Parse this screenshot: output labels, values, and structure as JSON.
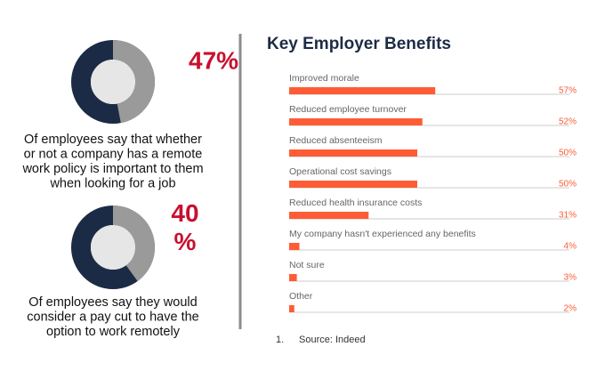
{
  "chart_data": [
    {
      "type": "donut",
      "values": [
        47
      ],
      "value_labels": [
        "47%"
      ],
      "color": "#9a9a9a",
      "rest_color": "#1c2b45",
      "caption": [
        "Of employees say that whether",
        "or not a company has a remote",
        "work policy is important to them",
        "when looking for a job"
      ]
    },
    {
      "type": "donut",
      "values": [
        40
      ],
      "value_labels": [
        "40 %"
      ],
      "color": "#9a9a9a",
      "rest_color": "#1c2b45",
      "caption": [
        "Of employees say they would",
        "consider a pay cut to have the",
        "option to work remotely"
      ]
    },
    {
      "type": "bar",
      "title": "Key Employer Benefits",
      "categories": [
        "Improved morale",
        "Reduced employee turnover",
        "Reduced absenteeism",
        "Operational cost savings",
        "Reduced health insurance costs",
        "My company hasn't experienced any benefits",
        "Not sure",
        "Other"
      ],
      "values": [
        57,
        52,
        50,
        50,
        31,
        4,
        3,
        2
      ],
      "value_labels": [
        "57%",
        "52%",
        "50%",
        "50%",
        "31%",
        "4%",
        "3%",
        "2%"
      ],
      "color": "#ff5c35",
      "xlim": [
        0,
        100
      ]
    }
  ],
  "footnote": {
    "number": "1.",
    "text": "Source: Indeed"
  }
}
